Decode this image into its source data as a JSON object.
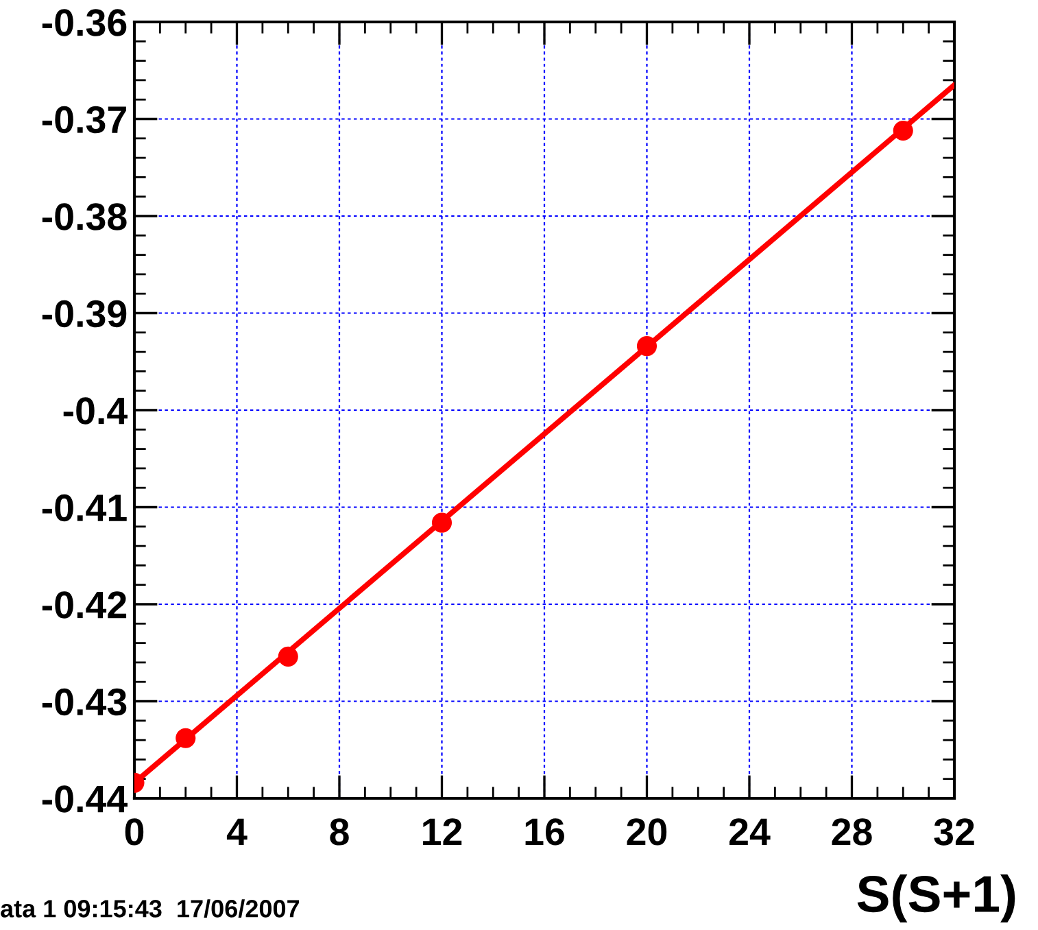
{
  "chart_data": {
    "type": "line",
    "xlabel": "S(S+1)",
    "x": [
      0,
      2,
      6,
      12,
      20,
      30
    ],
    "series": [
      {
        "type": "scatter",
        "marker": "circle",
        "color": "#ff0000",
        "values": [
          -0.4384,
          -0.4338,
          -0.4254,
          -0.4116,
          -0.3934,
          -0.3712
        ]
      },
      {
        "marker": "none",
        "color": "#ff0000",
        "x": [
          0,
          32
        ],
        "values": [
          -0.4384,
          -0.3665
        ]
      }
    ],
    "xlim": [
      0,
      32
    ],
    "xticks": [
      0,
      4,
      8,
      12,
      16,
      20,
      24,
      28,
      32
    ],
    "ylim": [
      -0.44,
      -0.36
    ],
    "yticks": [
      {
        "value": -0.44,
        "label": "-0.44"
      },
      {
        "value": -0.43,
        "label": "-0.43"
      },
      {
        "value": -0.42,
        "label": "-0.42"
      },
      {
        "value": -0.41,
        "label": "-0.41"
      },
      {
        "value": -0.4,
        "label": "-0.4"
      },
      {
        "value": -0.39,
        "label": "-0.39"
      },
      {
        "value": -0.38,
        "label": "-0.38"
      },
      {
        "value": -0.37,
        "label": "-0.37"
      },
      {
        "value": -0.36,
        "label": "-0.36"
      }
    ],
    "grid": true,
    "annotations": [
      "ata 1 09:15:43  17/06/2007"
    ]
  }
}
